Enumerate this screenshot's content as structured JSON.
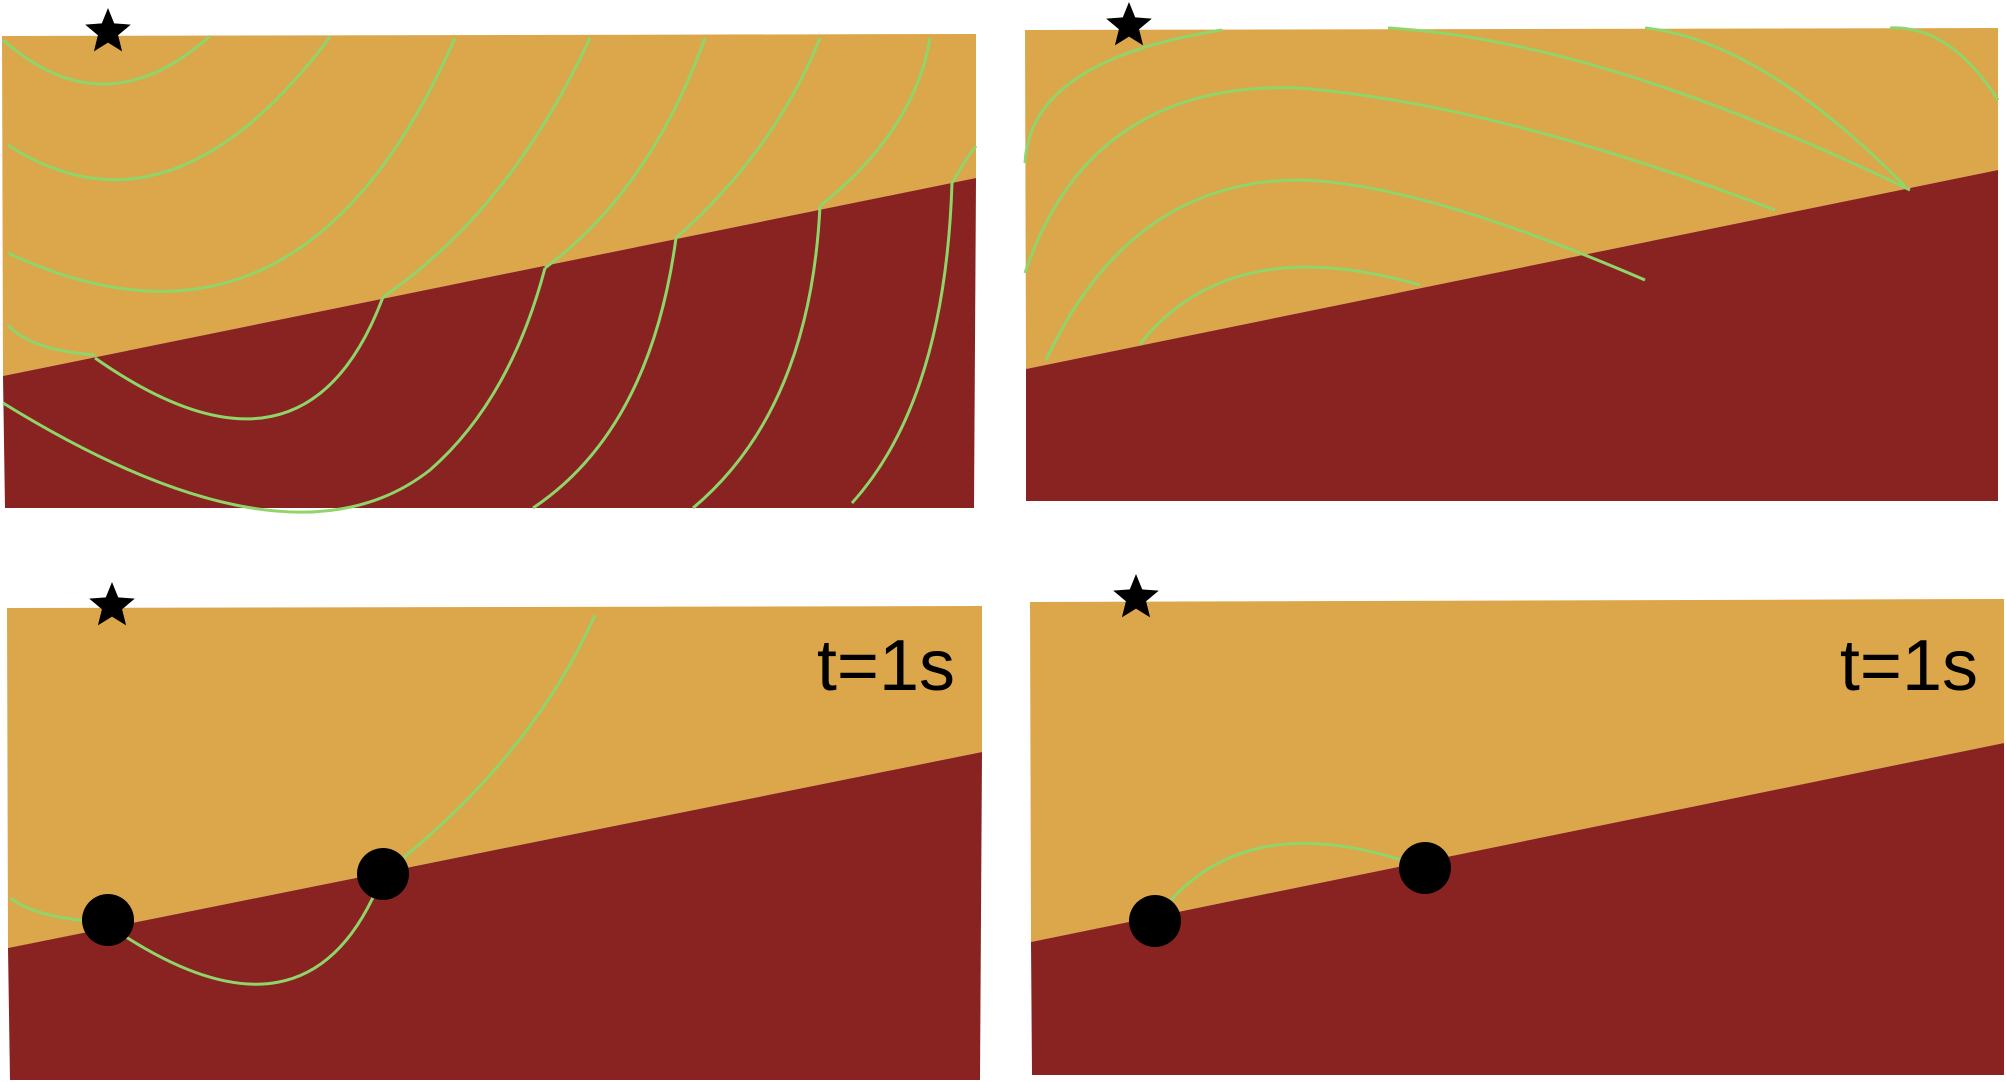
{
  "colors": {
    "background": "#ffffff",
    "upper_layer": "#dca64b",
    "lower_layer": "#882321",
    "wavefront": "#8fd56a",
    "marker": "#000000"
  },
  "icons": {
    "source": "star-icon",
    "receiver": "filled-circle-icon"
  },
  "panels": [
    {
      "id": "top-left",
      "label": ""
    },
    {
      "id": "top-right",
      "label": ""
    },
    {
      "id": "bottom-left",
      "label": "t=1s"
    },
    {
      "id": "bottom-right",
      "label": "t=1s"
    }
  ]
}
